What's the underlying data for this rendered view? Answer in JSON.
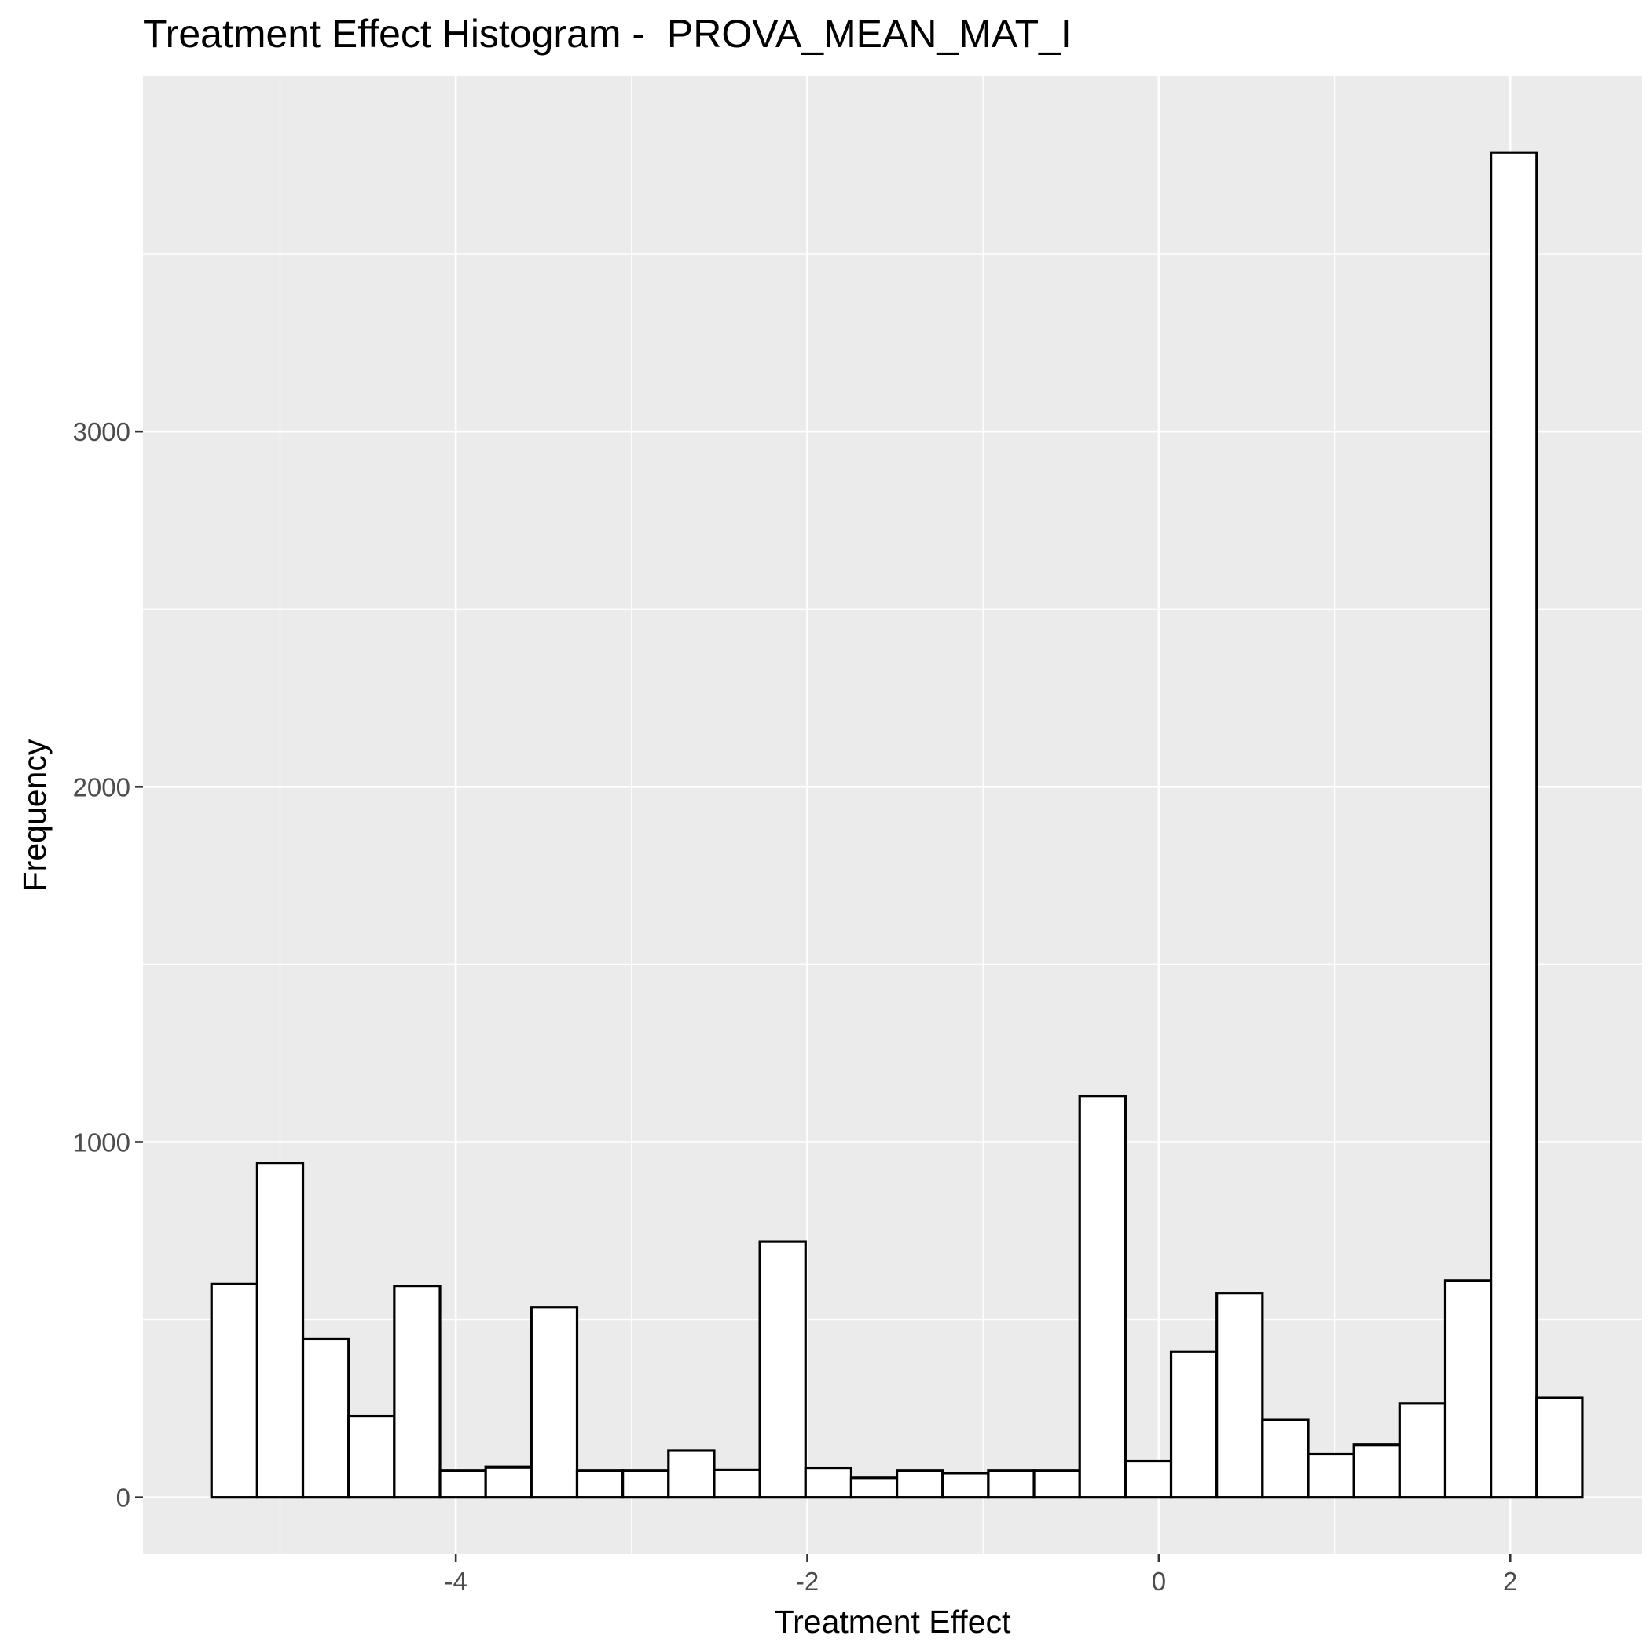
{
  "chart_data": {
    "type": "bar",
    "title": "Treatment Effect Histogram -  PROVA_MEAN_MAT_I",
    "xlabel": "Treatment Effect",
    "ylabel": "Frequency",
    "xlim": [
      -5.78,
      2.75
    ],
    "ylim": [
      -160,
      4000
    ],
    "x_ticks": [
      -4,
      -2,
      0,
      2
    ],
    "x_tick_labels": [
      "-4",
      "-2",
      "0",
      "2"
    ],
    "y_ticks": [
      0,
      1000,
      2000,
      3000
    ],
    "y_tick_labels": [
      "0",
      "1000",
      "2000",
      "3000"
    ],
    "bin_start": -5.39,
    "bin_width": 0.26,
    "values": [
      600,
      940,
      445,
      228,
      595,
      75,
      85,
      535,
      75,
      75,
      132,
      78,
      720,
      82,
      55,
      75,
      68,
      75,
      75,
      1130,
      102,
      410,
      575,
      218,
      122,
      148,
      265,
      610,
      3785,
      280
    ],
    "bar_fill": "#ffffff",
    "bar_stroke": "#000000",
    "panel_background": "#ebebeb",
    "grid_color": "#ffffff",
    "grid": true
  }
}
